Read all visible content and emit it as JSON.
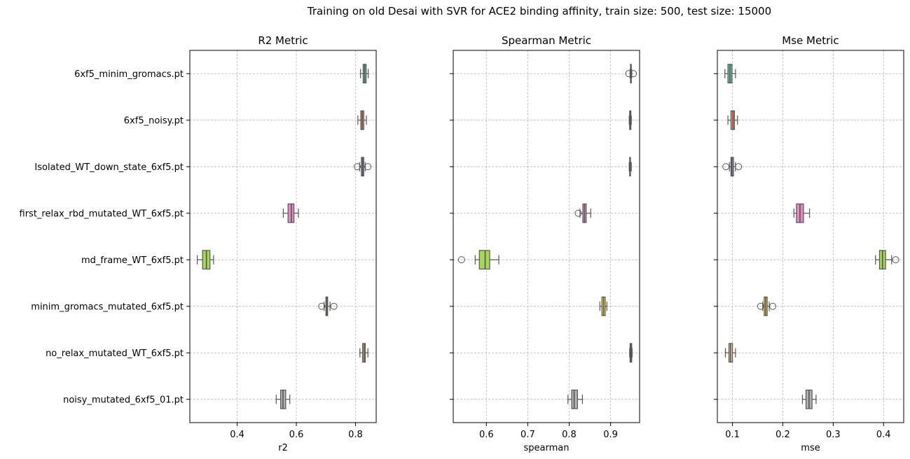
{
  "title": "Training on old Desai with SVR for ACE2 binding affinity, train size: 500, test size: 15000",
  "categories": [
    "6xf5_minim_gromacs.pt",
    "6xf5_noisy.pt",
    "Isolated_WT_down_state_6xf5.pt",
    "first_relax_rbd_mutated_WT_6xf5.pt",
    "md_frame_WT_6xf5.pt",
    "minim_gromacs_mutated_6xf5.pt",
    "no_relax_mutated_WT_6xf5.pt",
    "noisy_mutated_6xf5_01.pt"
  ],
  "colors": [
    "#66c2a5",
    "#fc8d62",
    "#8da0cb",
    "#e78ac3",
    "#a6d854",
    "#ffd92f",
    "#e5c494",
    "#b3b3b3"
  ],
  "chart_data": [
    {
      "type": "boxplot",
      "title": "R2 Metric",
      "xlabel": "r2",
      "xlim": [
        0.24,
        0.87
      ],
      "xticks": [
        0.4,
        0.6,
        0.8
      ],
      "xtick_labels": [
        "0.4",
        "0.6",
        "0.8"
      ],
      "grid": true,
      "boxes": [
        {
          "wlo": 0.817,
          "q1": 0.826,
          "med": 0.831,
          "q3": 0.836,
          "whi": 0.843,
          "outliers": []
        },
        {
          "wlo": 0.808,
          "q1": 0.818,
          "med": 0.823,
          "q3": 0.828,
          "whi": 0.837,
          "outliers": []
        },
        {
          "wlo": 0.814,
          "q1": 0.82,
          "med": 0.824,
          "q3": 0.828,
          "whi": 0.833,
          "outliers": [
            0.806,
            0.842
          ]
        },
        {
          "wlo": 0.556,
          "q1": 0.572,
          "med": 0.583,
          "q3": 0.592,
          "whi": 0.607,
          "outliers": []
        },
        {
          "wlo": 0.265,
          "q1": 0.283,
          "med": 0.296,
          "q3": 0.308,
          "whi": 0.32,
          "outliers": []
        },
        {
          "wlo": 0.694,
          "q1": 0.7,
          "med": 0.703,
          "q3": 0.706,
          "whi": 0.714,
          "outliers": [
            0.686,
            0.727
          ]
        },
        {
          "wlo": 0.815,
          "q1": 0.824,
          "med": 0.829,
          "q3": 0.833,
          "whi": 0.842,
          "outliers": []
        },
        {
          "wlo": 0.532,
          "q1": 0.547,
          "med": 0.555,
          "q3": 0.564,
          "whi": 0.578,
          "outliers": []
        }
      ]
    },
    {
      "type": "boxplot",
      "title": "Spearman Metric",
      "xlabel": "spearman",
      "xlim": [
        0.52,
        0.97
      ],
      "xticks": [
        0.6,
        0.7,
        0.8,
        0.9
      ],
      "xtick_labels": [
        "0.6",
        "0.7",
        "0.8",
        "0.9"
      ],
      "grid": true,
      "boxes": [
        {
          "wlo": 0.947,
          "q1": 0.948,
          "med": 0.949,
          "q3": 0.95,
          "whi": 0.951,
          "outliers": [
            0.944,
            0.955
          ]
        },
        {
          "wlo": 0.945,
          "q1": 0.946,
          "med": 0.947,
          "q3": 0.949,
          "whi": 0.95,
          "outliers": []
        },
        {
          "wlo": 0.945,
          "q1": 0.946,
          "med": 0.947,
          "q3": 0.948,
          "whi": 0.95,
          "outliers": []
        },
        {
          "wlo": 0.826,
          "q1": 0.833,
          "med": 0.837,
          "q3": 0.841,
          "whi": 0.852,
          "outliers": [
            0.822
          ]
        },
        {
          "wlo": 0.573,
          "q1": 0.583,
          "med": 0.597,
          "q3": 0.608,
          "whi": 0.63,
          "outliers": [
            0.54
          ]
        },
        {
          "wlo": 0.874,
          "q1": 0.879,
          "med": 0.883,
          "q3": 0.887,
          "whi": 0.891,
          "outliers": []
        },
        {
          "wlo": 0.946,
          "q1": 0.947,
          "med": 0.949,
          "q3": 0.951,
          "whi": 0.952,
          "outliers": []
        },
        {
          "wlo": 0.797,
          "q1": 0.806,
          "med": 0.812,
          "q3": 0.82,
          "whi": 0.832,
          "outliers": []
        }
      ]
    },
    {
      "type": "boxplot",
      "title": "Mse Metric",
      "xlabel": "mse",
      "xlim": [
        0.07,
        0.44
      ],
      "xticks": [
        0.1,
        0.2,
        0.3,
        0.4
      ],
      "xtick_labels": [
        "0.1",
        "0.2",
        "0.3",
        "0.4"
      ],
      "grid": true,
      "boxes": [
        {
          "wlo": 0.085,
          "q1": 0.091,
          "med": 0.095,
          "q3": 0.099,
          "whi": 0.106,
          "outliers": []
        },
        {
          "wlo": 0.091,
          "q1": 0.097,
          "med": 0.101,
          "q3": 0.104,
          "whi": 0.11,
          "outliers": []
        },
        {
          "wlo": 0.094,
          "q1": 0.097,
          "med": 0.099,
          "q3": 0.102,
          "whi": 0.106,
          "outliers": [
            0.087,
            0.112
          ]
        },
        {
          "wlo": 0.222,
          "q1": 0.227,
          "med": 0.234,
          "q3": 0.241,
          "whi": 0.253,
          "outliers": []
        },
        {
          "wlo": 0.384,
          "q1": 0.392,
          "med": 0.398,
          "q3": 0.404,
          "whi": 0.416,
          "outliers": [
            0.424
          ]
        },
        {
          "wlo": 0.16,
          "q1": 0.163,
          "med": 0.166,
          "q3": 0.169,
          "whi": 0.173,
          "outliers": [
            0.156,
            0.18
          ]
        },
        {
          "wlo": 0.086,
          "q1": 0.093,
          "med": 0.096,
          "q3": 0.1,
          "whi": 0.106,
          "outliers": []
        },
        {
          "wlo": 0.239,
          "q1": 0.246,
          "med": 0.252,
          "q3": 0.258,
          "whi": 0.266,
          "outliers": []
        }
      ]
    }
  ]
}
